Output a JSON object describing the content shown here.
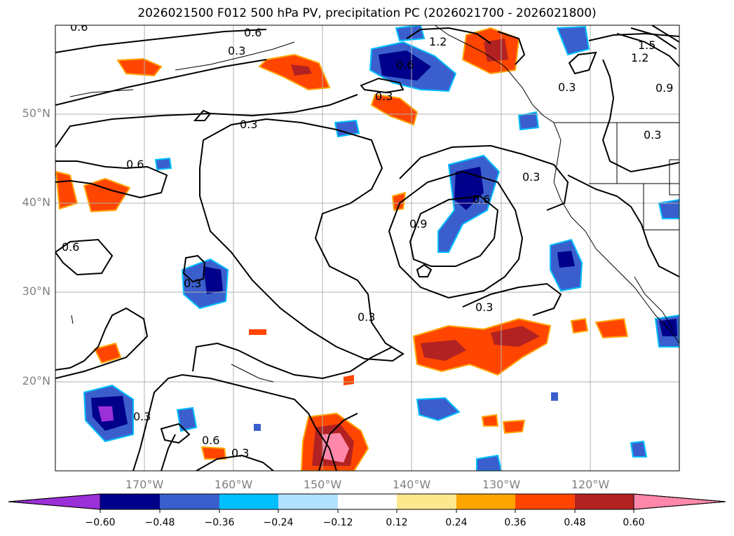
{
  "title": "2026021500 F012 500 hPa PV, precipitation PC (2026021700 - 2026021800)",
  "lat_labels": [
    "50°N",
    "40°N",
    "30°N",
    "20°N"
  ],
  "lon_labels": [
    "170°W",
    "160°W",
    "150°W",
    "140°W",
    "130°W",
    "120°W"
  ],
  "contour_labels": [
    "0.6",
    "0.6",
    "0.3",
    "1.2",
    "1.2",
    "1.5",
    "0.6",
    "0.3",
    "0.3",
    "0.9",
    "0.3",
    "0.3",
    "0.6",
    "0.3",
    "0.9",
    "0.6",
    "0.6",
    "0.3",
    "0.3",
    "0.3",
    "0.3",
    "0.6",
    "0.3"
  ],
  "colorbar": {
    "ticks": [
      "−0.60",
      "−0.48",
      "−0.36",
      "−0.24",
      "−0.12",
      "0.12",
      "0.24",
      "0.36",
      "0.48",
      "0.60"
    ],
    "colors": [
      "#9b30d8",
      "#00008b",
      "#3a5fcd",
      "#00bfff",
      "#b0e2ff",
      "#ffffff",
      "#fee88e",
      "#ffa500",
      "#ff4500",
      "#b22222",
      "#ff88aa",
      "#ff88aa"
    ]
  }
}
